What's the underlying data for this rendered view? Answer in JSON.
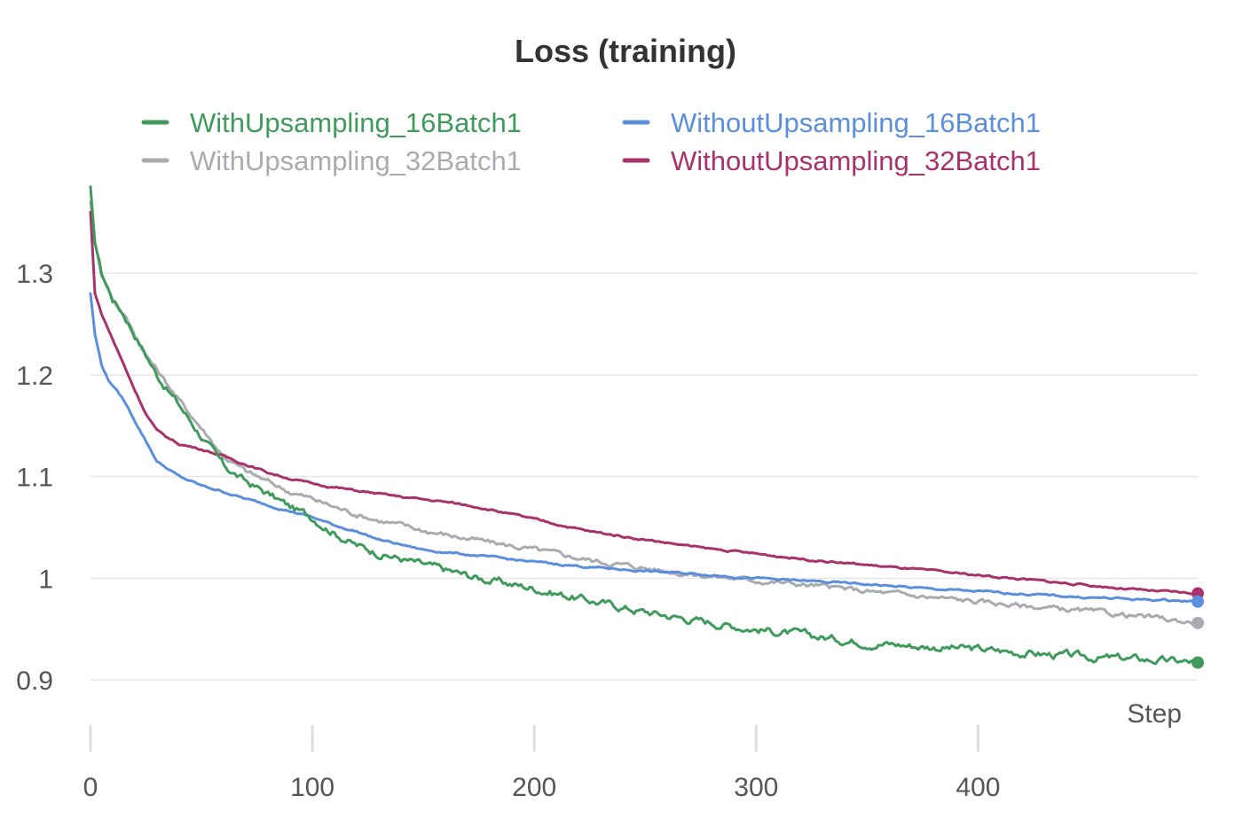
{
  "chart_data": {
    "type": "line",
    "title": "Loss (training)",
    "xlabel": "Step",
    "ylabel": "",
    "xlim": [
      0,
      499
    ],
    "ylim": [
      0.88,
      1.39
    ],
    "xticks": [
      0,
      100,
      200,
      300,
      400
    ],
    "xtick_labels": [
      "0",
      "100",
      "200",
      "300",
      "400"
    ],
    "yticks": [
      0.9,
      1.0,
      1.1,
      1.2,
      1.3
    ],
    "ytick_labels": [
      "0.9",
      "1",
      "1.1",
      "1.2",
      "1.3"
    ],
    "grid": "horizontal",
    "legend_position": "top",
    "series": [
      {
        "name": "WithUpsampling_16Batch1",
        "color": "#3f9a5c",
        "x": [
          0,
          2,
          5,
          10,
          15,
          20,
          25,
          30,
          40,
          50,
          60,
          70,
          80,
          90,
          100,
          110,
          120,
          130,
          150,
          175,
          200,
          225,
          250,
          275,
          300,
          325,
          350,
          375,
          400,
          425,
          450,
          475,
          490,
          499
        ],
        "y": [
          1.385,
          1.33,
          1.3,
          1.275,
          1.26,
          1.24,
          1.22,
          1.2,
          1.17,
          1.14,
          1.11,
          1.095,
          1.083,
          1.07,
          1.06,
          1.045,
          1.032,
          1.025,
          1.013,
          1.0,
          0.99,
          0.978,
          0.967,
          0.958,
          0.95,
          0.943,
          0.937,
          0.933,
          0.93,
          0.926,
          0.922,
          0.92,
          0.918,
          0.917
        ]
      },
      {
        "name": "WithUpsampling_32Batch1",
        "color": "#a8abaf",
        "x": [
          0,
          2,
          5,
          10,
          15,
          20,
          25,
          30,
          40,
          50,
          60,
          70,
          80,
          90,
          100,
          110,
          120,
          130,
          150,
          175,
          200,
          225,
          250,
          275,
          300,
          325,
          350,
          375,
          400,
          425,
          450,
          475,
          490,
          499
        ],
        "y": [
          1.37,
          1.33,
          1.3,
          1.275,
          1.26,
          1.24,
          1.22,
          1.205,
          1.175,
          1.148,
          1.12,
          1.105,
          1.095,
          1.085,
          1.078,
          1.07,
          1.063,
          1.057,
          1.047,
          1.037,
          1.028,
          1.018,
          1.01,
          1.003,
          0.998,
          0.993,
          0.987,
          0.982,
          0.977,
          0.972,
          0.967,
          0.962,
          0.958,
          0.956
        ]
      },
      {
        "name": "WithoutUpsampling_16Batch1",
        "color": "#5b8fde",
        "x": [
          0,
          2,
          5,
          8,
          10,
          15,
          20,
          25,
          30,
          40,
          50,
          60,
          70,
          80,
          90,
          100,
          110,
          120,
          130,
          150,
          175,
          200,
          225,
          250,
          275,
          300,
          325,
          350,
          375,
          400,
          425,
          450,
          475,
          490,
          499
        ],
        "y": [
          1.28,
          1.24,
          1.21,
          1.195,
          1.19,
          1.175,
          1.155,
          1.135,
          1.115,
          1.1,
          1.091,
          1.085,
          1.078,
          1.072,
          1.066,
          1.06,
          1.052,
          1.046,
          1.038,
          1.028,
          1.022,
          1.016,
          1.011,
          1.007,
          1.004,
          1.0,
          0.997,
          0.994,
          0.99,
          0.987,
          0.984,
          0.981,
          0.979,
          0.978,
          0.977
        ]
      },
      {
        "name": "WithoutUpsampling_32Batch1",
        "color": "#a8326b",
        "x": [
          0,
          2,
          5,
          8,
          10,
          15,
          20,
          25,
          30,
          35,
          40,
          50,
          60,
          70,
          80,
          90,
          100,
          120,
          140,
          160,
          175,
          200,
          225,
          250,
          275,
          300,
          325,
          350,
          375,
          400,
          425,
          450,
          475,
          490,
          499
        ],
        "y": [
          1.36,
          1.28,
          1.26,
          1.245,
          1.235,
          1.21,
          1.185,
          1.162,
          1.145,
          1.138,
          1.132,
          1.127,
          1.12,
          1.112,
          1.104,
          1.098,
          1.093,
          1.086,
          1.08,
          1.075,
          1.07,
          1.058,
          1.046,
          1.038,
          1.03,
          1.024,
          1.018,
          1.013,
          1.008,
          1.003,
          0.998,
          0.993,
          0.988,
          0.986,
          0.985
        ]
      }
    ]
  }
}
